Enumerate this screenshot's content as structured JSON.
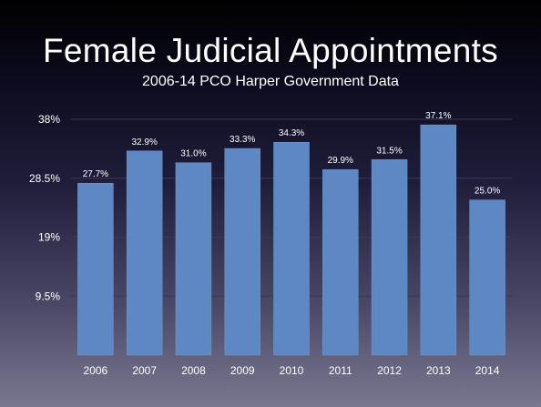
{
  "title": "Female Judicial Appointments",
  "subtitle": "2006-14 PCO Harper Government Data",
  "colors": {
    "bar": "#5d88c3",
    "bar_stroke": "#6f98cf",
    "gridline": "#3a3950",
    "text": "#ffffff"
  },
  "chart_data": {
    "type": "bar",
    "title": "Female Judicial Appointments",
    "subtitle": "2006-14 PCO Harper Government Data",
    "xlabel": "",
    "ylabel": "",
    "categories": [
      "2006",
      "2007",
      "2008",
      "2009",
      "2010",
      "2011",
      "2012",
      "2013",
      "2014"
    ],
    "values": [
      27.7,
      32.9,
      31.0,
      33.3,
      34.3,
      29.9,
      31.5,
      37.1,
      25.0
    ],
    "value_labels": [
      "27.7%",
      "32.9%",
      "31.0%",
      "33.3%",
      "34.3%",
      "29.9%",
      "31.5%",
      "37.1%",
      "25.0%"
    ],
    "ylim": [
      0,
      38
    ],
    "yticks": [
      9.5,
      19,
      28.5,
      38
    ],
    "ytick_labels": [
      "9.5%",
      "19%",
      "28.5%",
      "38%"
    ],
    "grid": true,
    "legend": false
  }
}
